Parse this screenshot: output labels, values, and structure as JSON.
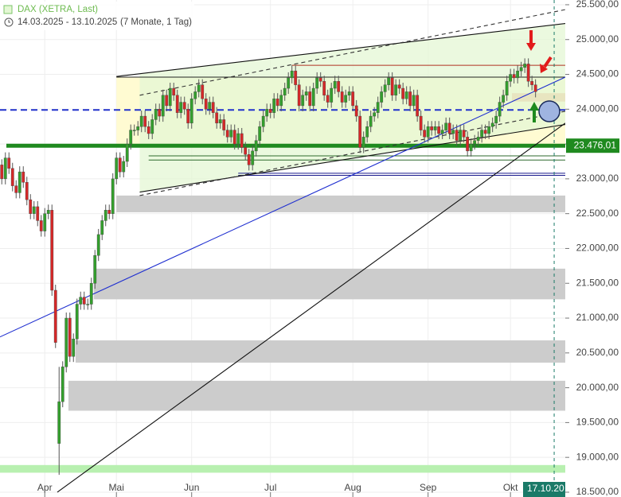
{
  "chart_data": {
    "type": "candlestick",
    "title": "DAX (XETRA, Last)",
    "subtitle": "14.03.2025 - 13.10.2025",
    "period": "(7 Monate, 1 Tag)",
    "open": [
      23200,
      23000,
      23300,
      23150,
      22900,
      22800,
      23100,
      22950,
      22700,
      22500,
      22600,
      22400,
      22250,
      22500,
      22550,
      21400,
      19200,
      19800,
      20300,
      21000,
      20450,
      20700,
      21200,
      21300,
      21200,
      21200,
      21500,
      21900,
      22200,
      22400,
      22550,
      22500,
      23000,
      23300,
      23100,
      23250,
      23500,
      23700,
      23700,
      23750,
      23900,
      23750,
      23650,
      23850,
      24000,
      23900,
      24200,
      24050,
      24300,
      24200,
      23950,
      24100,
      24000,
      23800,
      24150,
      24250,
      24350,
      24150,
      24000,
      24100,
      23950,
      23800,
      23850,
      23700,
      23600,
      23700,
      23500,
      23650,
      23450,
      23350,
      23200,
      23400,
      23550,
      23750,
      23900,
      24000,
      23950,
      24150,
      24050,
      24200,
      24300,
      24450,
      24550,
      24350,
      24050,
      24200,
      24250,
      24050,
      24300,
      24450,
      24400,
      24200,
      24100,
      24300,
      24400,
      24250,
      24100,
      24200,
      24250,
      24050,
      23900,
      23450,
      23600,
      23750,
      23900,
      23950,
      24100,
      24250,
      24350,
      24450,
      24200,
      24350,
      24300,
      24150,
      24250,
      24050,
      24200,
      23900,
      23700,
      23600,
      23750,
      23700,
      23750,
      23650,
      23700,
      23800,
      23650,
      23700,
      23550,
      23700,
      23600,
      23400,
      23500,
      23550,
      23600,
      23700,
      23650,
      23750,
      23800,
      23900,
      24100,
      24200,
      24400,
      24500,
      24450,
      24550,
      24600,
      24650,
      24400,
      24350
    ],
    "high": [
      23280,
      23380,
      23380,
      23230,
      22980,
      23180,
      23180,
      23030,
      22780,
      22680,
      22680,
      22480,
      22580,
      22630,
      22630,
      21480,
      20300,
      20380,
      21080,
      21080,
      20780,
      21280,
      21380,
      21380,
      21280,
      21580,
      21980,
      22280,
      22480,
      22630,
      22630,
      23080,
      23380,
      23380,
      23330,
      23580,
      23780,
      23780,
      23830,
      23980,
      23980,
      23830,
      23930,
      24080,
      24080,
      24280,
      24280,
      24380,
      24380,
      24280,
      24180,
      24180,
      24080,
      24230,
      24330,
      24430,
      24430,
      24230,
      24180,
      24180,
      24030,
      23930,
      23930,
      23780,
      23780,
      23780,
      23730,
      23730,
      23530,
      23430,
      23480,
      23630,
      23830,
      23980,
      24080,
      24080,
      24230,
      24230,
      24280,
      24380,
      24530,
      24630,
      24630,
      24430,
      24280,
      24330,
      24330,
      24380,
      24530,
      24530,
      24480,
      24280,
      24380,
      24480,
      24480,
      24330,
      24280,
      24330,
      24330,
      24130,
      23980,
      23680,
      23830,
      23980,
      24030,
      24180,
      24330,
      24430,
      24530,
      24530,
      24430,
      24430,
      24380,
      24330,
      24330,
      24280,
      24280,
      23980,
      23780,
      23830,
      23830,
      23830,
      23830,
      23780,
      23880,
      23880,
      23780,
      23780,
      23780,
      23780,
      23680,
      23580,
      23630,
      23680,
      23780,
      23780,
      23830,
      23880,
      23980,
      24180,
      24280,
      24480,
      24580,
      24580,
      24630,
      24680,
      24730,
      24730,
      24480,
      24430
    ],
    "low": [
      22920,
      22920,
      23070,
      22820,
      22720,
      22720,
      22870,
      22620,
      22420,
      22420,
      22320,
      22170,
      22170,
      22420,
      21320,
      20570,
      18750,
      19720,
      20220,
      20370,
      20370,
      20620,
      21120,
      21120,
      21120,
      21120,
      21420,
      21820,
      22120,
      22320,
      22420,
      22420,
      22920,
      23020,
      23020,
      23170,
      23420,
      23620,
      23620,
      23670,
      23670,
      23570,
      23570,
      23770,
      23820,
      23820,
      23970,
      23970,
      24120,
      23870,
      23870,
      23920,
      23720,
      23720,
      24070,
      24170,
      24070,
      23920,
      23920,
      23870,
      23720,
      23720,
      23620,
      23520,
      23520,
      23420,
      23420,
      23370,
      23270,
      23120,
      23120,
      23320,
      23470,
      23670,
      23820,
      23870,
      23870,
      23970,
      23970,
      24120,
      24220,
      24370,
      24270,
      23970,
      23970,
      24120,
      23970,
      23970,
      24220,
      24320,
      24120,
      24020,
      24020,
      24220,
      24170,
      24020,
      24020,
      24120,
      23970,
      23820,
      23370,
      23370,
      23520,
      23670,
      23820,
      23870,
      24020,
      24170,
      24270,
      24120,
      24120,
      24220,
      24070,
      24070,
      23970,
      23970,
      23820,
      23620,
      23520,
      23520,
      23620,
      23620,
      23570,
      23570,
      23620,
      23570,
      23570,
      23470,
      23470,
      23520,
      23320,
      23320,
      23420,
      23470,
      23520,
      23570,
      23570,
      23670,
      23720,
      23820,
      24020,
      24120,
      24320,
      24370,
      24370,
      24470,
      24520,
      24320,
      24270,
      24170
    ],
    "close": [
      23000,
      23300,
      23150,
      22900,
      22800,
      23100,
      22950,
      22700,
      22500,
      22600,
      22400,
      22250,
      22500,
      22550,
      21400,
      20650,
      19800,
      20300,
      21000,
      20450,
      20700,
      21200,
      21300,
      21200,
      21200,
      21500,
      21900,
      22200,
      22400,
      22550,
      22500,
      23000,
      23300,
      23100,
      23250,
      23500,
      23700,
      23700,
      23750,
      23900,
      23750,
      23650,
      23850,
      24000,
      23900,
      24200,
      24050,
      24300,
      24200,
      23950,
      24100,
      24000,
      23800,
      24150,
      24250,
      24350,
      24150,
      24000,
      24100,
      23950,
      23800,
      23850,
      23700,
      23600,
      23700,
      23500,
      23650,
      23450,
      23350,
      23200,
      23400,
      23550,
      23750,
      23900,
      24000,
      23950,
      24150,
      24050,
      24200,
      24300,
      24450,
      24550,
      24350,
      24050,
      24200,
      24250,
      24050,
      24300,
      24450,
      24400,
      24200,
      24100,
      24300,
      24400,
      24250,
      24100,
      24200,
      24250,
      24050,
      23900,
      23450,
      23600,
      23750,
      23900,
      23950,
      24100,
      24250,
      24350,
      24450,
      24200,
      24350,
      24300,
      24150,
      24250,
      24050,
      24200,
      23900,
      23700,
      23600,
      23750,
      23700,
      23750,
      23650,
      23700,
      23800,
      23650,
      23700,
      23550,
      23700,
      23600,
      23400,
      23500,
      23550,
      23600,
      23700,
      23650,
      23750,
      23800,
      23900,
      24100,
      24200,
      24400,
      24500,
      24450,
      24550,
      24600,
      24650,
      24400,
      24350,
      24250
    ],
    "up_color": "#33a02c",
    "down_color": "#d62728",
    "xlim": [
      -0.5,
      157.3
    ],
    "ylim": [
      18431,
      25568
    ],
    "grid": true,
    "xticks": [
      {
        "value": 12,
        "label": "Apr"
      },
      {
        "value": 32,
        "label": "Mai"
      },
      {
        "value": 53,
        "label": "Jun"
      },
      {
        "value": 75,
        "label": "Jul"
      },
      {
        "value": 98,
        "label": "Aug"
      },
      {
        "value": 119,
        "label": "Sep"
      },
      {
        "value": 142,
        "label": "Okt"
      }
    ],
    "yticks": [
      {
        "value": 18500,
        "label": "18.500,00"
      },
      {
        "value": 19000,
        "label": "19.000,00"
      },
      {
        "value": 19500,
        "label": "19.500,00"
      },
      {
        "value": 20000,
        "label": "20.000,00"
      },
      {
        "value": 20500,
        "label": "20.500,00"
      },
      {
        "value": 21000,
        "label": "21.000,00"
      },
      {
        "value": 21500,
        "label": "21.500,00"
      },
      {
        "value": 22000,
        "label": "22.000,00"
      },
      {
        "value": 22500,
        "label": "22.500,00"
      },
      {
        "value": 23000,
        "label": "23.000,00"
      },
      {
        "value": 23500,
        "label": "23.500,00"
      },
      {
        "value": 24000,
        "label": "24.000,00"
      },
      {
        "value": 24500,
        "label": "24.500,00"
      },
      {
        "value": 25000,
        "label": "25.000,00"
      },
      {
        "value": 25500,
        "label": "25.500,00"
      }
    ],
    "last_price": {
      "value": 23476.01,
      "label": "23.476,01",
      "color": "#1f8a1f"
    },
    "cursor": {
      "value": 154.2,
      "label": "17.10.20",
      "color": "#1a7a68"
    },
    "zones": [
      {
        "from": 18780,
        "to": 18890,
        "start": -0.5,
        "color": "#b8f0b0"
      },
      {
        "from": 19670,
        "to": 20100,
        "start": 18.6,
        "color": "#cccccc"
      },
      {
        "from": 20360,
        "to": 20680,
        "start": 20.6,
        "color": "#cccccc"
      },
      {
        "from": 21270,
        "to": 21710,
        "start": 25.7,
        "color": "#cccccc"
      },
      {
        "from": 22520,
        "to": 22760,
        "start": 32,
        "color": "#cccccc"
      },
      {
        "from": 23476,
        "to": 24460,
        "start": 32,
        "color": "#fffbd2"
      },
      {
        "from": 24110,
        "to": 24230,
        "start": 142.4,
        "color": "#f4b183"
      }
    ],
    "channel_color": "#e4f7d4",
    "levels": [
      {
        "value": 24460,
        "start": 32,
        "color": "#222222",
        "width": 1,
        "dash": false
      },
      {
        "value": 24630,
        "start": 81,
        "color": "#b03020",
        "width": 1,
        "dash": false
      },
      {
        "value": 23990,
        "start": -0.5,
        "color": "#2233cc",
        "width": 2,
        "dash": true
      },
      {
        "value": 23330,
        "start": 41,
        "color": "#2d6a2d",
        "width": 1,
        "dash": false
      },
      {
        "value": 23270,
        "start": 41,
        "color": "#2d6a2d",
        "width": 1,
        "dash": false
      },
      {
        "value": 23080,
        "start": 66,
        "color": "#1a1a8c",
        "width": 1,
        "dash": false
      },
      {
        "value": 23050,
        "start": 66,
        "color": "#1a1a8c",
        "width": 1,
        "dash": false
      }
    ],
    "trendlines": [
      {
        "x": [
          32,
          157.3
        ],
        "y": [
          24470,
          25230
        ],
        "color": "#111111",
        "dash": false
      },
      {
        "x": [
          38.5,
          157.3
        ],
        "y": [
          24200,
          25430
        ],
        "color": "#333333",
        "dash": true
      },
      {
        "x": [
          38.5,
          157.3
        ],
        "y": [
          22810,
          23780
        ],
        "color": "#111111",
        "dash": false
      },
      {
        "x": [
          38.5,
          157.3
        ],
        "y": [
          22760,
          23970
        ],
        "color": "#333333",
        "dash": true
      },
      {
        "x": [
          -0.5,
          157.3
        ],
        "y": [
          20730,
          24460
        ],
        "color": "#1f2fd0",
        "dash": false
      },
      {
        "x": [
          15.5,
          157.3
        ],
        "y": [
          18500,
          23800
        ],
        "color": "#111111",
        "dash": false
      }
    ]
  }
}
